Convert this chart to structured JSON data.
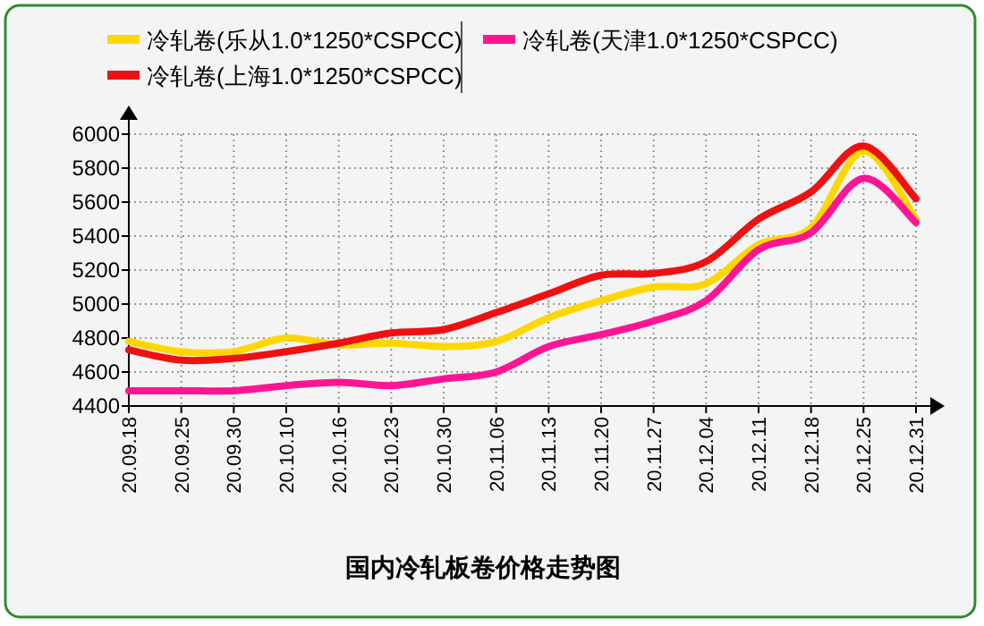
{
  "chart_data": {
    "type": "line",
    "title": "国内冷轧板卷价格走势图",
    "categories": [
      "20.09.18",
      "20.09.25",
      "20.09.30",
      "20.10.10",
      "20.10.16",
      "20.10.23",
      "20.10.30",
      "20.11.06",
      "20.11.13",
      "20.11.20",
      "20.11.27",
      "20.12.04",
      "20.12.11",
      "20.12.18",
      "20.12.25",
      "20.12.31"
    ],
    "series": [
      {
        "name": "冷轧卷(乐从1.0*1250*CSPCC)",
        "color": "#ffd700",
        "values": [
          4780,
          4720,
          4720,
          4800,
          4760,
          4770,
          4750,
          4780,
          4920,
          5020,
          5100,
          5120,
          5350,
          5450,
          5900,
          5500
        ]
      },
      {
        "name": "冷轧卷(上海1.0*1250*CSPCC)",
        "color": "#ee1111",
        "values": [
          4730,
          4670,
          4680,
          4720,
          4770,
          4830,
          4850,
          4950,
          5060,
          5170,
          5180,
          5250,
          5500,
          5660,
          5930,
          5620
        ]
      },
      {
        "name": "冷轧卷(天津1.0*1250*CSPCC)",
        "color": "#ff1493",
        "values": [
          4490,
          4490,
          4490,
          4520,
          4540,
          4520,
          4560,
          4600,
          4750,
          4820,
          4900,
          5020,
          5320,
          5420,
          5740,
          5480
        ]
      }
    ],
    "ylim": [
      4400,
      6000
    ],
    "yticks": [
      4400,
      4600,
      4800,
      5000,
      5200,
      5400,
      5600,
      5800,
      6000
    ],
    "grid": true,
    "legend": "top",
    "marker": "none",
    "line_style": "solid"
  }
}
